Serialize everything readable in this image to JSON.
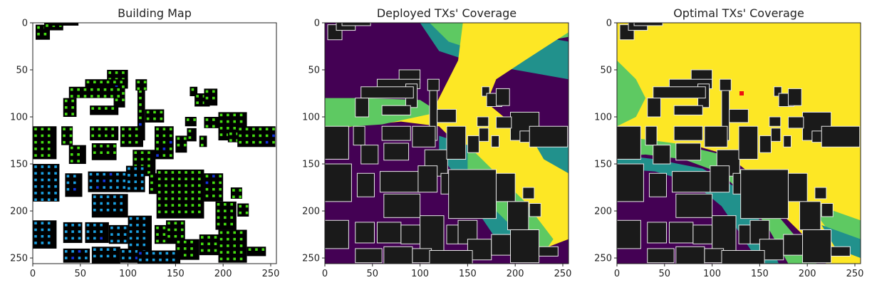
{
  "figure": {
    "panels": [
      {
        "title": "Building Map",
        "chart_data": {
          "type": "heatmap",
          "title": "Building Map",
          "xlabel": "",
          "ylabel": "",
          "xlim": [
            0,
            256
          ],
          "ylim": [
            256,
            0
          ],
          "xticks": [
            0,
            50,
            100,
            150,
            200,
            250
          ],
          "yticks": [
            0,
            50,
            100,
            150,
            200,
            250
          ],
          "background_color": "#ffffff",
          "building_color": "#000000",
          "marker_colors": [
            "#44dd11",
            "#1a9fe0",
            "#1133dd",
            "#22ccee"
          ]
        }
      },
      {
        "title": "Deployed TXs' Coverage",
        "chart_data": {
          "type": "heatmap",
          "title": "Deployed TXs' Coverage",
          "xlabel": "",
          "ylabel": "",
          "xlim": [
            0,
            256
          ],
          "ylim": [
            256,
            0
          ],
          "xticks": [
            0,
            50,
            100,
            150,
            200,
            250
          ],
          "yticks": [
            0,
            50,
            100,
            150,
            200,
            250
          ],
          "colormap": [
            "#440154",
            "#21918c",
            "#5ec962",
            "#fde725"
          ],
          "building_color": "#1a1a1a",
          "tx_marker_color": "#2233cc"
        }
      },
      {
        "title": "Optimal TXs' Coverage",
        "chart_data": {
          "type": "heatmap",
          "title": "Optimal TXs' Coverage",
          "xlabel": "",
          "ylabel": "",
          "xlim": [
            0,
            256
          ],
          "ylim": [
            256,
            0
          ],
          "xticks": [
            0,
            50,
            100,
            150,
            200,
            250
          ],
          "yticks": [
            0,
            50,
            100,
            150,
            200,
            250
          ],
          "colormap": [
            "#440154",
            "#21918c",
            "#5ec962",
            "#fde725"
          ],
          "building_color": "#1a1a1a",
          "tx_marker_color": "#ee1111",
          "tx_marker": [
            131,
            75
          ]
        }
      }
    ]
  }
}
